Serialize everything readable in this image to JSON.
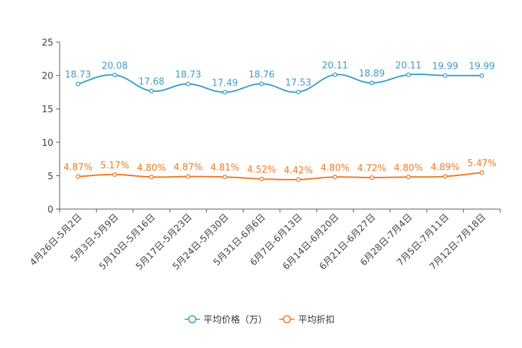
{
  "chart_data": {
    "type": "line",
    "title": "",
    "xlabel": "",
    "ylabel": "",
    "ylim": [
      0,
      25
    ],
    "yticks": [
      0,
      5,
      10,
      15,
      20,
      25
    ],
    "grid": false,
    "legend_position": "bottom-center",
    "categories": [
      "4月26日-5月2日",
      "5月3日-5月9日",
      "5月10日-5月16日",
      "5月17日-5月23日",
      "5月24日-5月30日",
      "5月31日-6月6日",
      "6月7日-6月13日",
      "6月14日-6月20日",
      "6月21日-6月27日",
      "6月28日-7月4日",
      "7月5日-7月11日",
      "7月12日-7月18日"
    ],
    "series": [
      {
        "name": "平均价格（万）",
        "color": "#3d9dc9",
        "values": [
          18.73,
          20.08,
          17.68,
          18.73,
          17.49,
          18.76,
          17.53,
          20.11,
          18.89,
          20.11,
          19.99,
          19.99
        ],
        "labels": [
          "18.73",
          "20.08",
          "17.68",
          "18.73",
          "17.49",
          "18.76",
          "17.53",
          "20.11",
          "18.89",
          "20.11",
          "19.99",
          "19.99"
        ]
      },
      {
        "name": "平均折扣",
        "color": "#ee7a22",
        "values": [
          4.87,
          5.17,
          4.8,
          4.87,
          4.81,
          4.52,
          4.42,
          4.8,
          4.72,
          4.8,
          4.89,
          5.47
        ],
        "labels": [
          "4.87%",
          "5.17%",
          "4.80%",
          "4.87%",
          "4.81%",
          "4.52%",
          "4.42%",
          "4.80%",
          "4.72%",
          "4.80%",
          "4.89%",
          "5.47%"
        ]
      }
    ]
  }
}
